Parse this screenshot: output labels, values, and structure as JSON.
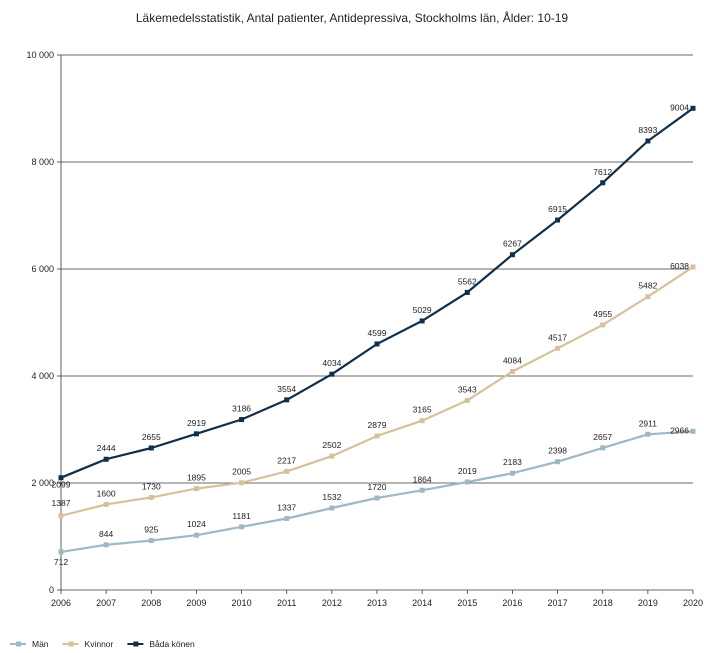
{
  "chart_data": {
    "type": "line",
    "title": "Läkemedelsstatistik, Antal patienter, Antidepressiva, Stockholms län, Ålder: 10-19",
    "xlabel": "",
    "ylabel": "",
    "x": [
      "2006",
      "2007",
      "2008",
      "2009",
      "2010",
      "2011",
      "2012",
      "2013",
      "2014",
      "2015",
      "2016",
      "2017",
      "2018",
      "2019",
      "2020"
    ],
    "y_ticks": [
      {
        "value": 0,
        "label": "0"
      },
      {
        "value": 2000,
        "label": "2 000"
      },
      {
        "value": 4000,
        "label": "4 000"
      },
      {
        "value": 6000,
        "label": "6 000"
      },
      {
        "value": 8000,
        "label": "8 000"
      },
      {
        "value": 10000,
        "label": "10 000"
      }
    ],
    "ylim": [
      0,
      10000
    ],
    "grid": true,
    "legend_position": "bottom-left",
    "series": [
      {
        "name": "Män",
        "color": "#9fb8c4",
        "values": [
          712,
          844,
          925,
          1024,
          1181,
          1337,
          1532,
          1720,
          1864,
          2019,
          2183,
          2398,
          2657,
          2911,
          2966
        ]
      },
      {
        "name": "Kvinnor",
        "color": "#d6c29a",
        "values": [
          1387,
          1600,
          1730,
          1895,
          2005,
          2217,
          2502,
          2879,
          3165,
          3543,
          4084,
          4517,
          4955,
          5482,
          6038
        ]
      },
      {
        "name": "Båda könen",
        "color": "#0f2f4a",
        "values": [
          2099,
          2444,
          2655,
          2919,
          3186,
          3554,
          4034,
          4599,
          5029,
          5562,
          6267,
          6915,
          7612,
          8393,
          9004
        ]
      }
    ]
  }
}
